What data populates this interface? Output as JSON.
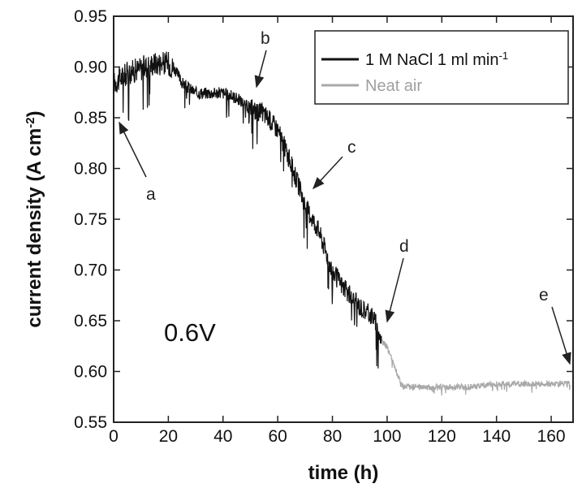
{
  "chart_data": {
    "type": "line",
    "xlabel": "time (h)",
    "ylabel": "current density (A cm",
    "ylabel_sup": "-2",
    "ylabel_tail": ")",
    "xlim": [
      0,
      168
    ],
    "ylim": [
      0.55,
      0.95
    ],
    "x_ticks": [
      "0",
      "20",
      "40",
      "60",
      "80",
      "100",
      "120",
      "140",
      "160"
    ],
    "y_ticks": [
      "0.55",
      "0.60",
      "0.65",
      "0.70",
      "0.75",
      "0.80",
      "0.85",
      "0.90",
      "0.95"
    ],
    "legend_position": "top-right",
    "series": [
      {
        "name": "1 M NaCl 1 ml min",
        "name_sup": "-1",
        "color": "#111111",
        "x": [
          0,
          5,
          10,
          15,
          20,
          22,
          25,
          30,
          35,
          40,
          45,
          50,
          55,
          60,
          65,
          70,
          75,
          80,
          85,
          90,
          95,
          98
        ],
        "y": [
          0.885,
          0.895,
          0.9,
          0.905,
          0.905,
          0.9,
          0.885,
          0.875,
          0.875,
          0.875,
          0.87,
          0.86,
          0.855,
          0.84,
          0.805,
          0.765,
          0.74,
          0.7,
          0.68,
          0.665,
          0.655,
          0.63
        ]
      },
      {
        "name": "Neat air",
        "color": "#a8a8a8",
        "x": [
          98,
          100,
          102,
          104,
          106,
          110,
          120,
          130,
          140,
          150,
          160,
          167
        ],
        "y": [
          0.63,
          0.625,
          0.61,
          0.595,
          0.585,
          0.585,
          0.585,
          0.585,
          0.588,
          0.588,
          0.588,
          0.588
        ]
      }
    ],
    "annotations": [
      {
        "label": "a",
        "x": 2,
        "y": 0.845
      },
      {
        "label": "b",
        "x": 52,
        "y": 0.875
      },
      {
        "label": "c",
        "x": 70,
        "y": 0.78
      },
      {
        "label": "d",
        "x": 100,
        "y": 0.635
      },
      {
        "label": "e",
        "x": 166,
        "y": 0.59
      }
    ],
    "inset_text": "0.6V"
  }
}
